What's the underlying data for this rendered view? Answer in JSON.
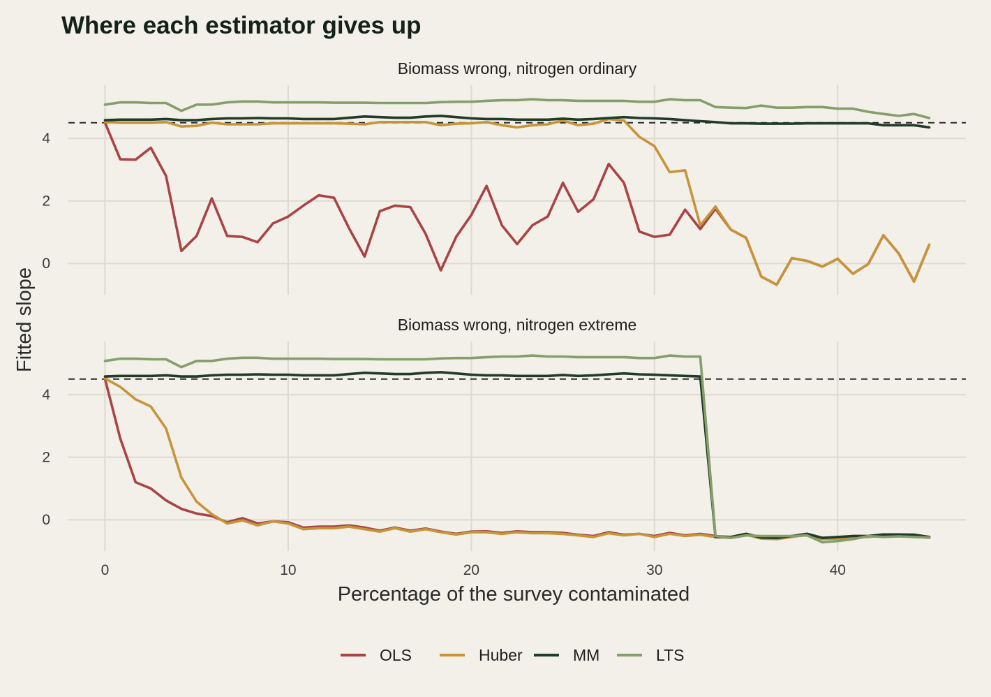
{
  "chart_data": {
    "type": "line",
    "title": "Where each estimator gives up",
    "xlabel": "Percentage of the survey contaminated",
    "ylabel": "Fitted slope",
    "xlim": [
      -2,
      47
    ],
    "x_ticks": [
      0,
      10,
      20,
      30,
      40
    ],
    "ylim": [
      -1,
      5.7
    ],
    "y_ticks": [
      0,
      2,
      4
    ],
    "reference_line": 4.5,
    "grid": true,
    "legend_position": "bottom",
    "colors": {
      "OLS": "#a94445",
      "Huber": "#c6953a",
      "MM": "#203b28",
      "LTS": "#869e6c"
    },
    "x": [
      0,
      0.83,
      1.67,
      2.5,
      3.33,
      4.17,
      5,
      5.83,
      6.67,
      7.5,
      8.33,
      9.17,
      10,
      10.83,
      11.67,
      12.5,
      13.33,
      14.17,
      15,
      15.83,
      16.67,
      17.5,
      18.33,
      19.17,
      20,
      20.83,
      21.67,
      22.5,
      23.33,
      24.17,
      25,
      25.83,
      26.67,
      27.5,
      28.33,
      29.17,
      30,
      30.83,
      31.67,
      32.5,
      33.33,
      34.17,
      35,
      35.83,
      36.67,
      37.5,
      38.33,
      39.17,
      40,
      40.83,
      41.67,
      42.5,
      43.33,
      44.17,
      45
    ],
    "panels": [
      {
        "strip": "Biomass wrong, nitrogen ordinary",
        "series": [
          {
            "name": "OLS",
            "values": [
              4.5,
              3.33,
              3.32,
              3.7,
              2.8,
              0.4,
              0.88,
              2.08,
              0.88,
              0.85,
              0.68,
              1.28,
              1.5,
              1.85,
              2.18,
              2.1,
              1.12,
              0.22,
              1.67,
              1.85,
              1.8,
              0.95,
              -0.22,
              0.85,
              1.55,
              2.48,
              1.22,
              0.62,
              1.22,
              1.5,
              2.58,
              1.65,
              2.05,
              3.18,
              2.58,
              1.02,
              0.85,
              0.92,
              1.72,
              1.1,
              1.75,
              1.08,
              0.82,
              -0.42,
              -0.68,
              0.17,
              0.08,
              -0.1,
              0.15,
              -0.33,
              -0.02,
              0.9,
              0.32,
              -0.58,
              0.6
            ]
          },
          {
            "name": "Huber",
            "values": [
              4.52,
              4.5,
              4.5,
              4.5,
              4.52,
              4.38,
              4.4,
              4.5,
              4.45,
              4.45,
              4.45,
              4.48,
              4.48,
              4.48,
              4.48,
              4.48,
              4.47,
              4.45,
              4.52,
              4.52,
              4.52,
              4.52,
              4.42,
              4.47,
              4.48,
              4.52,
              4.42,
              4.35,
              4.42,
              4.45,
              4.57,
              4.42,
              4.47,
              4.62,
              4.57,
              4.05,
              3.75,
              2.92,
              2.98,
              1.22,
              1.82,
              1.08,
              0.82,
              -0.42,
              -0.68,
              0.17,
              0.08,
              -0.1,
              0.15,
              -0.33,
              -0.02,
              0.9,
              0.32,
              -0.58,
              0.6
            ]
          },
          {
            "name": "MM",
            "values": [
              4.58,
              4.6,
              4.6,
              4.6,
              4.62,
              4.58,
              4.58,
              4.62,
              4.64,
              4.64,
              4.65,
              4.64,
              4.64,
              4.62,
              4.62,
              4.62,
              4.66,
              4.7,
              4.68,
              4.66,
              4.66,
              4.7,
              4.72,
              4.68,
              4.64,
              4.62,
              4.62,
              4.6,
              4.6,
              4.6,
              4.63,
              4.6,
              4.62,
              4.65,
              4.68,
              4.65,
              4.64,
              4.62,
              4.58,
              4.55,
              4.52,
              4.48,
              4.48,
              4.47,
              4.47,
              4.47,
              4.48,
              4.48,
              4.48,
              4.48,
              4.48,
              4.42,
              4.42,
              4.42,
              4.35
            ]
          },
          {
            "name": "LTS",
            "values": [
              5.08,
              5.15,
              5.15,
              5.13,
              5.13,
              4.88,
              5.08,
              5.08,
              5.15,
              5.18,
              5.18,
              5.15,
              5.15,
              5.15,
              5.15,
              5.14,
              5.14,
              5.14,
              5.13,
              5.13,
              5.13,
              5.13,
              5.16,
              5.17,
              5.17,
              5.2,
              5.22,
              5.22,
              5.25,
              5.22,
              5.22,
              5.2,
              5.2,
              5.2,
              5.2,
              5.17,
              5.17,
              5.25,
              5.22,
              5.22,
              5.0,
              4.98,
              4.97,
              5.05,
              4.98,
              4.98,
              5.0,
              5.0,
              4.95,
              4.95,
              4.85,
              4.78,
              4.72,
              4.78,
              4.65
            ]
          }
        ]
      },
      {
        "strip": "Biomass wrong, nitrogen extreme",
        "series": [
          {
            "name": "OLS",
            "values": [
              4.5,
              2.6,
              1.2,
              1.0,
              0.62,
              0.35,
              0.2,
              0.12,
              -0.08,
              0.05,
              -0.12,
              -0.05,
              -0.08,
              -0.25,
              -0.22,
              -0.22,
              -0.18,
              -0.25,
              -0.35,
              -0.25,
              -0.35,
              -0.28,
              -0.38,
              -0.45,
              -0.38,
              -0.37,
              -0.42,
              -0.37,
              -0.4,
              -0.4,
              -0.42,
              -0.48,
              -0.52,
              -0.4,
              -0.48,
              -0.45,
              -0.52,
              -0.42,
              -0.5,
              -0.45,
              -0.52,
              -0.55,
              -0.45,
              -0.57,
              -0.58,
              -0.52,
              -0.45,
              -0.58,
              -0.57,
              -0.52,
              -0.52,
              -0.47,
              -0.48,
              -0.48,
              -0.55
            ]
          },
          {
            "name": "Huber",
            "values": [
              4.52,
              4.25,
              3.85,
              3.62,
              2.92,
              1.35,
              0.58,
              0.18,
              -0.12,
              -0.02,
              -0.18,
              -0.05,
              -0.12,
              -0.3,
              -0.27,
              -0.27,
              -0.22,
              -0.3,
              -0.38,
              -0.27,
              -0.38,
              -0.3,
              -0.4,
              -0.47,
              -0.4,
              -0.4,
              -0.45,
              -0.4,
              -0.43,
              -0.43,
              -0.45,
              -0.5,
              -0.55,
              -0.43,
              -0.5,
              -0.45,
              -0.55,
              -0.45,
              -0.52,
              -0.48,
              -0.55,
              -0.58,
              -0.48,
              -0.6,
              -0.62,
              -0.55,
              -0.48,
              -0.62,
              -0.6,
              -0.55,
              -0.55,
              -0.5,
              -0.52,
              -0.52,
              -0.58
            ]
          },
          {
            "name": "MM",
            "values": [
              4.58,
              4.6,
              4.6,
              4.6,
              4.62,
              4.58,
              4.58,
              4.62,
              4.64,
              4.64,
              4.65,
              4.64,
              4.64,
              4.62,
              4.62,
              4.62,
              4.66,
              4.7,
              4.68,
              4.66,
              4.66,
              4.7,
              4.72,
              4.68,
              4.64,
              4.62,
              4.62,
              4.6,
              4.6,
              4.6,
              4.63,
              4.6,
              4.62,
              4.65,
              4.68,
              4.65,
              4.64,
              4.62,
              4.6,
              4.58,
              -0.55,
              -0.55,
              -0.45,
              -0.57,
              -0.58,
              -0.52,
              -0.45,
              -0.58,
              -0.55,
              -0.52,
              -0.52,
              -0.47,
              -0.47,
              -0.48,
              -0.55
            ]
          },
          {
            "name": "LTS",
            "values": [
              5.08,
              5.15,
              5.15,
              5.13,
              5.13,
              4.88,
              5.08,
              5.08,
              5.15,
              5.18,
              5.18,
              5.15,
              5.15,
              5.15,
              5.15,
              5.14,
              5.14,
              5.14,
              5.13,
              5.13,
              5.13,
              5.13,
              5.16,
              5.17,
              5.17,
              5.2,
              5.22,
              5.22,
              5.25,
              5.22,
              5.22,
              5.2,
              5.2,
              5.2,
              5.2,
              5.17,
              5.17,
              5.25,
              5.22,
              5.22,
              -0.52,
              -0.58,
              -0.5,
              -0.52,
              -0.52,
              -0.52,
              -0.5,
              -0.72,
              -0.68,
              -0.62,
              -0.52,
              -0.55,
              -0.53,
              -0.55,
              -0.57
            ]
          }
        ]
      }
    ]
  }
}
